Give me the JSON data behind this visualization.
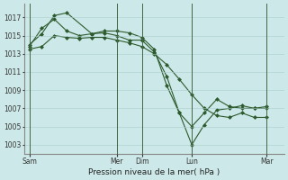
{
  "title": "",
  "xlabel": "Pression niveau de la mer( hPa )",
  "ylabel": "",
  "bg_color": "#cce8e8",
  "line_color": "#2d5a2d",
  "grid_color": "#aacccc",
  "ylim": [
    1002.0,
    1018.5
  ],
  "yticks": [
    1003,
    1005,
    1007,
    1009,
    1011,
    1013,
    1015,
    1017
  ],
  "xtick_labels": [
    "Sam",
    "Mer",
    "Dim",
    "Lun",
    "Mar"
  ],
  "xtick_pos": [
    0.0,
    3.5,
    4.5,
    6.5,
    9.5
  ],
  "xlim": [
    -0.2,
    10.2
  ],
  "vlines": [
    0.0,
    3.5,
    4.5,
    6.5,
    9.5
  ],
  "line1_x": [
    0.0,
    0.5,
    1.0,
    1.5,
    2.5,
    3.0,
    3.5,
    4.0,
    4.5,
    5.0,
    5.5,
    6.0,
    6.5,
    7.0,
    7.5,
    8.0,
    8.5,
    9.0,
    9.5
  ],
  "line1_y": [
    1014.0,
    1015.2,
    1017.2,
    1017.5,
    1015.2,
    1015.5,
    1015.5,
    1015.3,
    1014.8,
    1013.5,
    1009.5,
    1006.5,
    1003.0,
    1005.2,
    1006.8,
    1007.0,
    1007.3,
    1007.0,
    1007.0
  ],
  "line2_x": [
    0.0,
    0.5,
    1.0,
    1.5,
    2.0,
    2.5,
    3.0,
    3.5,
    4.0,
    4.5,
    5.0,
    5.5,
    6.0,
    6.5,
    7.0,
    7.5,
    8.0,
    8.5,
    9.0,
    9.5
  ],
  "line2_y": [
    1013.8,
    1015.8,
    1016.8,
    1015.5,
    1015.0,
    1015.2,
    1015.3,
    1015.0,
    1014.5,
    1014.5,
    1013.2,
    1010.5,
    1006.5,
    1005.0,
    1006.5,
    1008.0,
    1007.2,
    1007.0,
    1007.0,
    1007.2
  ],
  "line3_x": [
    0.0,
    0.5,
    1.0,
    1.5,
    2.0,
    2.5,
    3.0,
    3.5,
    4.0,
    4.5,
    5.0,
    5.5,
    6.0,
    6.5,
    7.0,
    7.5,
    8.0,
    8.5,
    9.0,
    9.5
  ],
  "line3_y": [
    1013.5,
    1013.8,
    1015.0,
    1014.8,
    1014.7,
    1014.8,
    1014.8,
    1014.5,
    1014.2,
    1013.8,
    1013.0,
    1011.8,
    1010.2,
    1008.5,
    1007.0,
    1006.2,
    1006.0,
    1006.5,
    1006.0,
    1006.0
  ]
}
